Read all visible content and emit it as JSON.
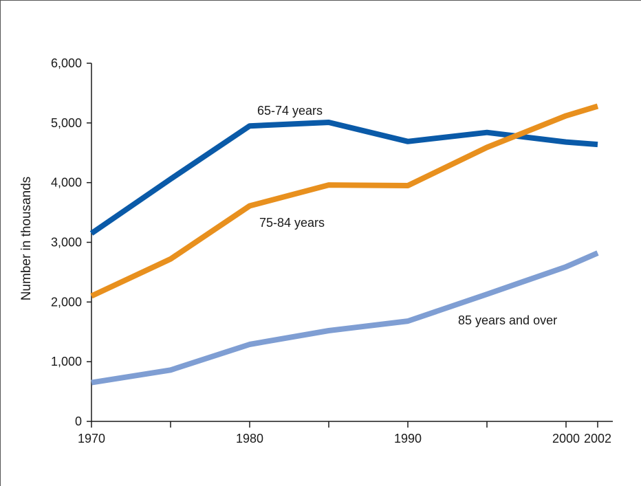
{
  "chart_data": {
    "type": "line",
    "title": "",
    "xlabel": "",
    "ylabel": "Number in thousands",
    "x": [
      1970,
      1975,
      1980,
      1985,
      1990,
      1995,
      2000,
      2002
    ],
    "x_ticks": [
      "1970",
      "",
      "1980",
      "",
      "1990",
      "",
      "2000",
      "2002"
    ],
    "ylim": [
      0,
      6000
    ],
    "y_ticks": [
      0,
      1000,
      2000,
      3000,
      4000,
      5000,
      6000
    ],
    "y_tick_labels": [
      "0",
      "1,000",
      "2,000",
      "3,000",
      "4,000",
      "5,000",
      "6,000"
    ],
    "grid": false,
    "legend": "none (series labeled inline)",
    "series": [
      {
        "name": "65-74 years",
        "color": "#0a5aa8",
        "values": [
          3150,
          4060,
          4950,
          5010,
          4690,
          4840,
          4680,
          4640
        ]
      },
      {
        "name": "75-84 years",
        "color": "#e8901e",
        "values": [
          2100,
          2720,
          3610,
          3960,
          3950,
          4590,
          5120,
          5280
        ]
      },
      {
        "name": "85 years and over",
        "color": "#7f9ed3",
        "values": [
          650,
          860,
          1290,
          1520,
          1680,
          2130,
          2590,
          2820
        ]
      }
    ]
  }
}
